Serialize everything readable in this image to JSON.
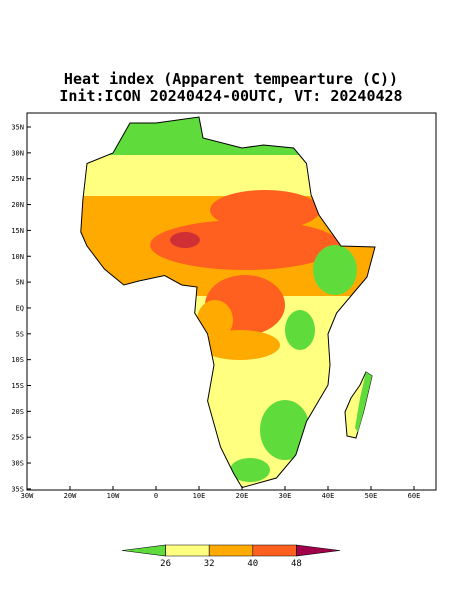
{
  "title": {
    "line1": "Heat index (Apparent tempearture (C))",
    "line2": "Init:ICON 20240424-00UTC, VT: 20240428"
  },
  "map": {
    "lat_labels": [
      "35N",
      "30N",
      "25N",
      "20N",
      "15N",
      "10N",
      "5N",
      "EQ",
      "5S",
      "10S",
      "15S",
      "20S",
      "25S",
      "30S",
      "35S"
    ],
    "lon_labels": [
      "30W",
      "20W",
      "10W",
      "0",
      "10E",
      "20E",
      "30E",
      "40E",
      "50E",
      "60E"
    ]
  },
  "colorbar": {
    "ticks": [
      26,
      32,
      40,
      48
    ],
    "colors": [
      "#5fdc3c",
      "#ffff80",
      "#ffaa00",
      "#ff6020",
      "#a0004a"
    ]
  }
}
